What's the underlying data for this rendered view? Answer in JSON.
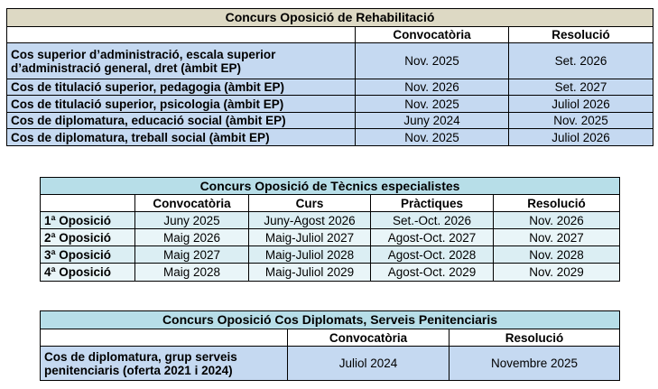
{
  "tables": [
    {
      "title": "Concurs Oposició de Rehabilitació",
      "headers": [
        "Convocatòria",
        "Resolució"
      ],
      "rows": [
        [
          "Cos superior d’administració, escala superior d’administració general, dret (àmbit EP)",
          "Nov. 2025",
          "Set. 2026"
        ],
        [
          "Cos de titulació superior, pedagogia (àmbit EP)",
          "Nov. 2026",
          "Set. 2027"
        ],
        [
          "Cos de titulació superior, psicologia (àmbit EP)",
          "Nov. 2025",
          "Juliol 2026"
        ],
        [
          "Cos de diplomatura, educació social (àmbit EP)",
          "Juny 2024",
          "Nov. 2025"
        ],
        [
          "Cos de diplomatura, treball social (àmbit EP)",
          "Nov. 2025",
          "Juliol 2026"
        ]
      ]
    },
    {
      "title": "Concurs Oposició de Tècnics especialistes",
      "headers": [
        "Convocatòria",
        "Curs",
        "Pràctiques",
        "Resolució"
      ],
      "rows": [
        [
          "1ª Oposició",
          "Juny 2025",
          "Juny-Agost 2026",
          "Set.-Oct. 2026",
          "Nov. 2026"
        ],
        [
          "2ª Oposició",
          "Maig 2026",
          "Maig-Juliol 2027",
          "Agost-Oct. 2027",
          "Nov. 2027"
        ],
        [
          "3ª Oposició",
          "Maig 2027",
          "Maig-Juliol 2028",
          "Agost-Oct. 2028",
          "Nov. 2028"
        ],
        [
          "4ª Oposició",
          "Maig 2028",
          "Maig-Juliol 2029",
          "Agost-Oct. 2029",
          "Nov. 2029"
        ]
      ]
    },
    {
      "title": "Concurs Oposició Cos Diplomats, Serveis Penitenciaris",
      "headers": [
        "Convocatòria",
        "Resolució"
      ],
      "rows": [
        [
          "Cos de diplomatura, grup serveis penitenciaris (oferta 2021 i 2024)",
          "Juliol 2024",
          "Novembre 2025"
        ]
      ]
    }
  ]
}
